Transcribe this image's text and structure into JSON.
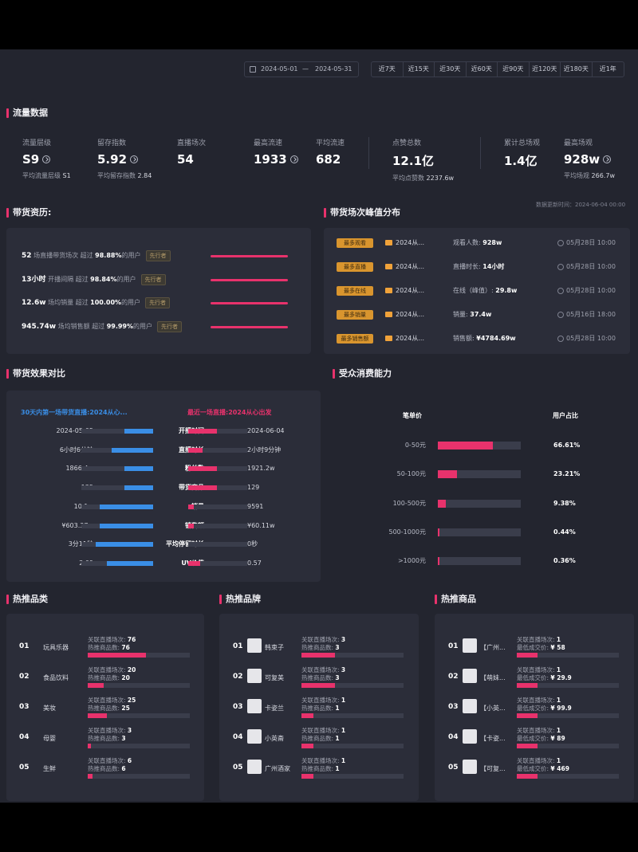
{
  "filters": {
    "date_start": "2024-05-01",
    "date_sep": "—",
    "date_end": "2024-05-31",
    "ranges": [
      "近7天",
      "近15天",
      "近30天",
      "近60天",
      "近90天",
      "近120天",
      "近180天",
      "近1年"
    ]
  },
  "traffic": {
    "title": "流量数据",
    "metrics": [
      {
        "label": "流量层级",
        "value": "S9",
        "info": true,
        "sub_label": "平均流量层级",
        "sub_value": "S1"
      },
      {
        "label": "留存指数",
        "value": "5.92",
        "info": true,
        "sub_label": "平均留存指数",
        "sub_value": "2.84"
      },
      {
        "label": "直播场次",
        "value": "54",
        "info": false,
        "sub_label": "",
        "sub_value": ""
      },
      {
        "label": "最高流速",
        "value": "1933",
        "info": true,
        "sub_label": "",
        "sub_value": ""
      },
      {
        "label": "平均流速",
        "value": "682",
        "info": false,
        "sub_label": "",
        "sub_value": ""
      },
      {
        "label": "点赞总数",
        "value": "12.1亿",
        "info": false,
        "sub_label": "平均点赞数",
        "sub_value": "2237.6w"
      },
      {
        "label": "累计总场观",
        "value": "1.4亿",
        "info": false,
        "sub_label": "",
        "sub_value": ""
      },
      {
        "label": "最高场观",
        "value": "928w",
        "info": true,
        "sub_label": "平均场观",
        "sub_value": "266.7w"
      }
    ],
    "update_time": "数据更新时间：2024-06-04 00:00"
  },
  "history": {
    "title": "带货资历:",
    "rows": [
      {
        "value": "52",
        "text": "场直播带货场次",
        "exceed": "超过",
        "pct": "98.88%",
        "tail": "的用户",
        "tag": "先行者",
        "fill": 1.0
      },
      {
        "value": "13小时",
        "text": "开播间隔",
        "exceed": "超过",
        "pct": "98.84%",
        "tail": "的用户",
        "tag": "先行者",
        "fill": 1.0
      },
      {
        "value": "12.6w",
        "text": "场均销量",
        "exceed": "超过",
        "pct": "100.00%",
        "tail": "的用户",
        "tag": "先行者",
        "fill": 1.0
      },
      {
        "value": "945.74w",
        "text": "场均销售额",
        "exceed": "超过",
        "pct": "99.99%",
        "tail": "的用户",
        "tag": "先行者",
        "fill": 1.0
      }
    ]
  },
  "peak": {
    "title": "带货场次峰值分布",
    "rows": [
      {
        "badge": "最多观看",
        "room": "2024从...",
        "key": "观看人数:",
        "value": "928w",
        "time": "05月28日 10:00"
      },
      {
        "badge": "最多直播",
        "room": "2024从...",
        "key": "直播时长:",
        "value": "14小时",
        "time": "05月28日 10:00"
      },
      {
        "badge": "最多在线",
        "room": "2024从...",
        "key": "在线（峰值）:",
        "value": "29.8w",
        "time": "05月28日 10:00"
      },
      {
        "badge": "最多销量",
        "room": "2024从...",
        "key": "销量:",
        "value": "37.4w",
        "time": "05月16日 18:00"
      },
      {
        "badge": "最多销售额",
        "room": "2024从...",
        "key": "销售额:",
        "value": "¥4784.69w",
        "time": "05月28日 10:00"
      }
    ]
  },
  "compare": {
    "title": "带货效果对比",
    "left_title": "30天内第一场带货直播:2024从心...",
    "right_title": "最近一场直播:2024从心出发",
    "colors": {
      "left": "#3a8ee6",
      "right": "#e8326c"
    },
    "rows": [
      {
        "name": "开播时间",
        "left": "2024-05-05",
        "right": "2024-06-04",
        "lf": 0.4,
        "rf": 0.48
      },
      {
        "name": "直播时长",
        "left": "6小时6分钟",
        "right": "2小时9分钟",
        "lf": 0.58,
        "rf": 0.24
      },
      {
        "name": "粉丝数",
        "left": "1866.4w",
        "right": "1921.2w",
        "lf": 0.4,
        "rf": 0.48
      },
      {
        "name": "带货商品",
        "left": "135",
        "right": "129",
        "lf": 0.4,
        "rf": 0.48
      },
      {
        "name": "销量",
        "left": "10.1w",
        "right": "9591",
        "lf": 0.74,
        "rf": 0.09
      },
      {
        "name": "销售额",
        "left": "¥603.37w",
        "right": "¥60.11w",
        "lf": 0.74,
        "rf": 0.09
      },
      {
        "name": "平均停留时长",
        "left": "3分11秒",
        "right": "0秒",
        "lf": 0.8,
        "rf": 0.0
      },
      {
        "name": "UV价值",
        "left": "2.09",
        "right": "0.57",
        "lf": 0.64,
        "rf": 0.2
      }
    ]
  },
  "consumption": {
    "title": "受众消费能力",
    "col_price": "笔单价",
    "col_share": "用户占比",
    "rows": [
      {
        "range": "0-50元",
        "pct": "66.61%",
        "fill": 0.6661
      },
      {
        "range": "50-100元",
        "pct": "23.21%",
        "fill": 0.2321
      },
      {
        "range": "100-500元",
        "pct": "9.38%",
        "fill": 0.0938
      },
      {
        "range": "500-1000元",
        "pct": "0.44%",
        "fill": 0.0044
      },
      {
        "range": ">1000元",
        "pct": "0.36%",
        "fill": 0.0036
      }
    ]
  },
  "hot_category": {
    "title": "热推品类",
    "rows": [
      {
        "rank": "01",
        "name": "玩具乐器",
        "l1k": "关联直播场次:",
        "l1v": "76",
        "l2k": "热推商品数:",
        "l2v": "76",
        "fill": 0.57
      },
      {
        "rank": "02",
        "name": "食品饮料",
        "l1k": "关联直播场次:",
        "l1v": "20",
        "l2k": "热推商品数:",
        "l2v": "20",
        "fill": 0.16
      },
      {
        "rank": "03",
        "name": "美妆",
        "l1k": "关联直播场次:",
        "l1v": "25",
        "l2k": "热推商品数:",
        "l2v": "25",
        "fill": 0.19
      },
      {
        "rank": "04",
        "name": "母婴",
        "l1k": "关联直播场次:",
        "l1v": "3",
        "l2k": "热推商品数:",
        "l2v": "3",
        "fill": 0.03
      },
      {
        "rank": "05",
        "name": "生鲜",
        "l1k": "关联直播场次:",
        "l1v": "6",
        "l2k": "热推商品数:",
        "l2v": "6",
        "fill": 0.05
      }
    ]
  },
  "hot_brand": {
    "title": "热推品牌",
    "rows": [
      {
        "rank": "01",
        "name": "韩束子",
        "l1k": "关联直播场次:",
        "l1v": "3",
        "l2k": "热推商品数:",
        "l2v": "3",
        "fill": 0.33
      },
      {
        "rank": "02",
        "name": "可复美",
        "l1k": "关联直播场次:",
        "l1v": "3",
        "l2k": "热推商品数:",
        "l2v": "3",
        "fill": 0.33
      },
      {
        "rank": "03",
        "name": "卡姿兰",
        "l1k": "关联直播场次:",
        "l1v": "1",
        "l2k": "热推商品数:",
        "l2v": "1",
        "fill": 0.12
      },
      {
        "rank": "04",
        "name": "小英斋",
        "l1k": "关联直播场次:",
        "l1v": "1",
        "l2k": "热推商品数:",
        "l2v": "1",
        "fill": 0.12
      },
      {
        "rank": "05",
        "name": "广州酒家",
        "l1k": "关联直播场次:",
        "l1v": "1",
        "l2k": "热推商品数:",
        "l2v": "1",
        "fill": 0.12
      }
    ]
  },
  "hot_product": {
    "title": "热推商品",
    "rows": [
      {
        "rank": "01",
        "name": "【广州...",
        "l1k": "关联直播场次:",
        "l1v": "1",
        "l2k": "最低成交价:",
        "l2v": "¥ 58",
        "fill": 0.2
      },
      {
        "rank": "02",
        "name": "【萌妹...",
        "l1k": "关联直播场次:",
        "l1v": "1",
        "l2k": "最低成交价:",
        "l2v": "¥ 29.9",
        "fill": 0.2
      },
      {
        "rank": "03",
        "name": "【小英...",
        "l1k": "关联直播场次:",
        "l1v": "1",
        "l2k": "最低成交价:",
        "l2v": "¥ 99.9",
        "fill": 0.2
      },
      {
        "rank": "04",
        "name": "【卡姿...",
        "l1k": "关联直播场次:",
        "l1v": "1",
        "l2k": "最低成交价:",
        "l2v": "¥ 89",
        "fill": 0.2
      },
      {
        "rank": "05",
        "name": "【可复...",
        "l1k": "关联直播场次:",
        "l1v": "1",
        "l2k": "最低成交价:",
        "l2v": "¥ 469",
        "fill": 0.2
      }
    ]
  }
}
